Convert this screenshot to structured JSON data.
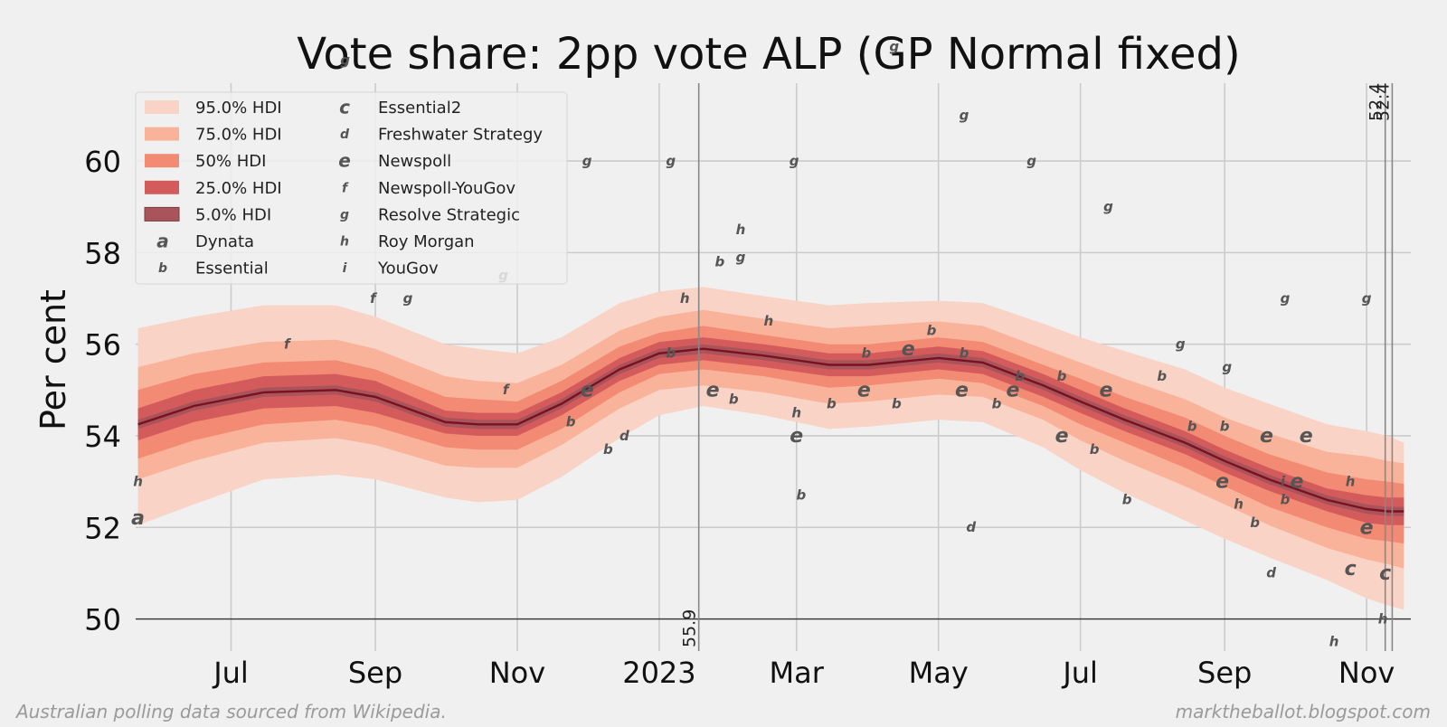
{
  "chart_data": {
    "type": "area",
    "title": "Vote share: 2pp vote ALP (GP Normal fixed)",
    "ylabel": "Per cent",
    "xlabel": "",
    "ylim": [
      49.3,
      61.7
    ],
    "xlim": [
      "2022-05-21",
      "2023-11-20"
    ],
    "yticks": [
      50,
      52,
      54,
      56,
      58,
      60
    ],
    "xticks": [
      {
        "date": "2022-07-01",
        "label": "Jul"
      },
      {
        "date": "2022-09-01",
        "label": "Sep"
      },
      {
        "date": "2022-11-01",
        "label": "Nov"
      },
      {
        "date": "2023-01-01",
        "label": "2023"
      },
      {
        "date": "2023-03-01",
        "label": "Mar"
      },
      {
        "date": "2023-05-01",
        "label": "May"
      },
      {
        "date": "2023-07-01",
        "label": "Jul"
      },
      {
        "date": "2023-09-01",
        "label": "Sep"
      },
      {
        "date": "2023-11-01",
        "label": "Nov"
      }
    ],
    "grid": true,
    "legend_position": "top-left",
    "reference_line_y": 50,
    "colors": {
      "band95": "#f9d3c5",
      "band75": "#f9b39a",
      "band50": "#f28a74",
      "band25": "#d45b5b",
      "band5": "#a8545a",
      "median": "#7a1020",
      "text": "#333333",
      "grid": "#cbcbcb"
    },
    "hdi_x": [
      "2022-05-22",
      "2022-06-15",
      "2022-07-15",
      "2022-08-15",
      "2022-09-01",
      "2022-10-01",
      "2022-10-15",
      "2022-11-01",
      "2022-11-20",
      "2022-12-15",
      "2023-01-01",
      "2023-01-20",
      "2023-02-15",
      "2023-03-15",
      "2023-04-01",
      "2023-05-01",
      "2023-05-20",
      "2023-06-15",
      "2023-07-01",
      "2023-07-20",
      "2023-08-15",
      "2023-09-01",
      "2023-09-20",
      "2023-10-15",
      "2023-11-01",
      "2023-11-10",
      "2023-11-17"
    ],
    "median": [
      54.25,
      54.65,
      54.95,
      55.0,
      54.85,
      54.3,
      54.25,
      54.25,
      54.7,
      55.45,
      55.8,
      55.9,
      55.75,
      55.55,
      55.55,
      55.7,
      55.6,
      55.1,
      54.75,
      54.35,
      53.85,
      53.45,
      53.05,
      52.6,
      52.4,
      52.35,
      52.35
    ],
    "bands": [
      {
        "label": "95.0% HDI",
        "lower": [
          52.05,
          52.5,
          53.05,
          53.15,
          53.05,
          52.65,
          52.55,
          52.6,
          53.1,
          53.95,
          54.45,
          54.65,
          54.45,
          54.15,
          54.2,
          54.35,
          54.3,
          53.75,
          53.25,
          52.75,
          52.15,
          51.75,
          51.35,
          50.85,
          50.45,
          50.3,
          50.2
        ],
        "upper": [
          56.35,
          56.6,
          56.85,
          56.85,
          56.6,
          56.0,
          55.9,
          55.8,
          56.15,
          56.9,
          57.15,
          57.25,
          57.05,
          56.85,
          56.9,
          56.95,
          56.9,
          56.45,
          56.15,
          55.85,
          55.45,
          55.05,
          54.7,
          54.25,
          54.1,
          54.0,
          53.85
        ]
      },
      {
        "label": "75.0% HDI",
        "lower": [
          53.05,
          53.45,
          53.85,
          53.95,
          53.8,
          53.35,
          53.3,
          53.3,
          53.8,
          54.6,
          55.0,
          55.1,
          54.95,
          54.7,
          54.75,
          54.9,
          54.85,
          54.35,
          53.9,
          53.45,
          52.9,
          52.5,
          52.05,
          51.55,
          51.3,
          51.2,
          51.1
        ],
        "upper": [
          55.5,
          55.8,
          56.05,
          56.1,
          55.9,
          55.3,
          55.2,
          55.15,
          55.55,
          56.3,
          56.6,
          56.75,
          56.55,
          56.35,
          56.4,
          56.5,
          56.4,
          55.9,
          55.6,
          55.25,
          54.8,
          54.4,
          54.05,
          53.65,
          53.55,
          53.45,
          53.4
        ]
      },
      {
        "label": "50% HDI",
        "lower": [
          53.5,
          53.9,
          54.25,
          54.35,
          54.2,
          53.75,
          53.7,
          53.7,
          54.15,
          54.95,
          55.35,
          55.45,
          55.3,
          55.05,
          55.1,
          55.25,
          55.15,
          54.65,
          54.25,
          53.85,
          53.3,
          52.9,
          52.45,
          52.0,
          51.75,
          51.7,
          51.65
        ],
        "upper": [
          55.0,
          55.35,
          55.6,
          55.65,
          55.45,
          54.85,
          54.8,
          54.75,
          55.2,
          55.95,
          56.25,
          56.4,
          56.2,
          56.0,
          56.0,
          56.15,
          56.05,
          55.55,
          55.25,
          54.85,
          54.4,
          54.0,
          53.6,
          53.2,
          53.05,
          53.0,
          52.95
        ]
      },
      {
        "label": "25.0% HDI",
        "lower": [
          53.9,
          54.3,
          54.6,
          54.65,
          54.5,
          54.05,
          54.0,
          54.0,
          54.45,
          55.2,
          55.55,
          55.65,
          55.5,
          55.3,
          55.3,
          55.45,
          55.35,
          54.85,
          54.5,
          54.1,
          53.6,
          53.2,
          52.8,
          52.35,
          52.1,
          52.05,
          52.05
        ],
        "upper": [
          54.6,
          55.0,
          55.3,
          55.35,
          55.2,
          54.55,
          54.5,
          54.5,
          54.95,
          55.7,
          56.05,
          56.15,
          56.0,
          55.8,
          55.8,
          55.95,
          55.85,
          55.35,
          55.0,
          54.6,
          54.1,
          53.7,
          53.3,
          52.85,
          52.7,
          52.65,
          52.65
        ]
      },
      {
        "label": "5.0% HDI",
        "lower": [
          54.15,
          54.55,
          54.85,
          54.9,
          54.75,
          54.2,
          54.15,
          54.15,
          54.6,
          55.35,
          55.7,
          55.8,
          55.65,
          55.45,
          55.45,
          55.6,
          55.5,
          55.0,
          54.65,
          54.25,
          53.75,
          53.35,
          52.95,
          52.5,
          52.3,
          52.25,
          52.25
        ],
        "upper": [
          54.35,
          54.75,
          55.05,
          55.1,
          54.95,
          54.4,
          54.35,
          54.35,
          54.8,
          55.55,
          55.9,
          56.0,
          55.85,
          55.65,
          55.65,
          55.8,
          55.7,
          55.2,
          54.85,
          54.45,
          53.95,
          53.55,
          53.15,
          52.7,
          52.5,
          52.45,
          52.45
        ]
      }
    ],
    "pollster_legend": [
      {
        "marker": "a",
        "name": "Dynata"
      },
      {
        "marker": "b",
        "name": "Essential"
      },
      {
        "marker": "c",
        "name": "Essential2"
      },
      {
        "marker": "d",
        "name": "Freshwater Strategy"
      },
      {
        "marker": "e",
        "name": "Newspoll"
      },
      {
        "marker": "f",
        "name": "Newspoll-YouGov"
      },
      {
        "marker": "g",
        "name": "Resolve Strategic"
      },
      {
        "marker": "h",
        "name": "Roy Morgan"
      },
      {
        "marker": "i",
        "name": "YouGov"
      }
    ],
    "polls": [
      {
        "m": "a",
        "d": "2022-05-22",
        "v": 52.2
      },
      {
        "m": "h",
        "d": "2022-05-22",
        "v": 53.0
      },
      {
        "m": "f",
        "d": "2022-07-25",
        "v": 56.0
      },
      {
        "m": "g",
        "d": "2022-08-19",
        "v": 62.2
      },
      {
        "m": "f",
        "d": "2022-08-31",
        "v": 57.0
      },
      {
        "m": "g",
        "d": "2022-09-15",
        "v": 57.0
      },
      {
        "m": "g",
        "d": "2022-10-26",
        "v": 57.5
      },
      {
        "m": "f",
        "d": "2022-10-27",
        "v": 55.0
      },
      {
        "m": "g",
        "d": "2022-12-01",
        "v": 60.0
      },
      {
        "m": "e",
        "d": "2022-12-01",
        "v": 55.0
      },
      {
        "m": "b",
        "d": "2022-11-24",
        "v": 54.3
      },
      {
        "m": "b",
        "d": "2022-12-10",
        "v": 53.7
      },
      {
        "m": "d",
        "d": "2022-12-17",
        "v": 54.0
      },
      {
        "m": "g",
        "d": "2023-01-06",
        "v": 60.0
      },
      {
        "m": "b",
        "d": "2023-01-06",
        "v": 55.8
      },
      {
        "m": "h",
        "d": "2023-01-12",
        "v": 57.0
      },
      {
        "m": "b",
        "d": "2023-01-27",
        "v": 57.8
      },
      {
        "m": "h",
        "d": "2023-02-05",
        "v": 58.5
      },
      {
        "m": "g",
        "d": "2023-02-05",
        "v": 57.9
      },
      {
        "m": "e",
        "d": "2023-01-24",
        "v": 55.0
      },
      {
        "m": "b",
        "d": "2023-02-02",
        "v": 54.8
      },
      {
        "m": "h",
        "d": "2023-02-17",
        "v": 56.5
      },
      {
        "m": "g",
        "d": "2023-02-28",
        "v": 60.0
      },
      {
        "m": "h",
        "d": "2023-03-01",
        "v": 54.5
      },
      {
        "m": "e",
        "d": "2023-03-01",
        "v": 54.0
      },
      {
        "m": "b",
        "d": "2023-03-03",
        "v": 52.7
      },
      {
        "m": "b",
        "d": "2023-03-16",
        "v": 54.7
      },
      {
        "m": "b",
        "d": "2023-03-31",
        "v": 55.8
      },
      {
        "m": "e",
        "d": "2023-03-30",
        "v": 55.0
      },
      {
        "m": "b",
        "d": "2023-04-13",
        "v": 54.7
      },
      {
        "m": "g",
        "d": "2023-04-12",
        "v": 62.5
      },
      {
        "m": "e",
        "d": "2023-04-18",
        "v": 55.9
      },
      {
        "m": "b",
        "d": "2023-04-28",
        "v": 56.3
      },
      {
        "m": "e",
        "d": "2023-05-11",
        "v": 55.0
      },
      {
        "m": "g",
        "d": "2023-05-12",
        "v": 61.0
      },
      {
        "m": "d",
        "d": "2023-05-15",
        "v": 52.0
      },
      {
        "m": "b",
        "d": "2023-05-12",
        "v": 55.8
      },
      {
        "m": "b",
        "d": "2023-05-26",
        "v": 54.7
      },
      {
        "m": "e",
        "d": "2023-06-02",
        "v": 55.0
      },
      {
        "m": "b",
        "d": "2023-06-05",
        "v": 55.3
      },
      {
        "m": "g",
        "d": "2023-06-10",
        "v": 60.0
      },
      {
        "m": "e",
        "d": "2023-06-23",
        "v": 54.0
      },
      {
        "m": "b",
        "d": "2023-06-23",
        "v": 55.3
      },
      {
        "m": "b",
        "d": "2023-07-07",
        "v": 53.7
      },
      {
        "m": "e",
        "d": "2023-07-12",
        "v": 55.0
      },
      {
        "m": "g",
        "d": "2023-07-13",
        "v": 59.0
      },
      {
        "m": "b",
        "d": "2023-07-21",
        "v": 52.6
      },
      {
        "m": "b",
        "d": "2023-08-05",
        "v": 55.3
      },
      {
        "m": "g",
        "d": "2023-08-13",
        "v": 56.0
      },
      {
        "m": "b",
        "d": "2023-08-18",
        "v": 54.2
      },
      {
        "m": "b",
        "d": "2023-09-01",
        "v": 54.2
      },
      {
        "m": "e",
        "d": "2023-08-31",
        "v": 53.0
      },
      {
        "m": "h",
        "d": "2023-09-07",
        "v": 52.5
      },
      {
        "m": "g",
        "d": "2023-09-02",
        "v": 55.5
      },
      {
        "m": "b",
        "d": "2023-09-14",
        "v": 52.1
      },
      {
        "m": "e",
        "d": "2023-09-19",
        "v": 54.0
      },
      {
        "m": "d",
        "d": "2023-09-21",
        "v": 51.0
      },
      {
        "m": "g",
        "d": "2023-09-27",
        "v": 57.0
      },
      {
        "m": "b",
        "d": "2023-09-27",
        "v": 52.6
      },
      {
        "m": "i",
        "d": "2023-09-26",
        "v": 53.0
      },
      {
        "m": "e",
        "d": "2023-10-02",
        "v": 53.0
      },
      {
        "m": "e",
        "d": "2023-10-06",
        "v": 54.0
      },
      {
        "m": "h",
        "d": "2023-10-18",
        "v": 49.5
      },
      {
        "m": "h",
        "d": "2023-10-25",
        "v": 53.0
      },
      {
        "m": "c",
        "d": "2023-10-25",
        "v": 51.1
      },
      {
        "m": "g",
        "d": "2023-11-01",
        "v": 57.0
      },
      {
        "m": "e",
        "d": "2023-11-01",
        "v": 52.0
      },
      {
        "m": "c",
        "d": "2023-11-09",
        "v": 51.0
      },
      {
        "m": "h",
        "d": "2023-11-08",
        "v": 50.0
      }
    ],
    "annotations": [
      {
        "text": "55.9",
        "date": "2023-01-18",
        "v": 55.9
      },
      {
        "text": "52.4",
        "date": "2023-11-09",
        "v": 52.4
      },
      {
        "text": "52.4",
        "date": "2023-11-12",
        "v": 52.4
      }
    ],
    "markers_vertical": [
      "2023-01-18",
      "2023-11-09",
      "2023-11-12"
    ]
  },
  "footer": {
    "left": "Australian polling data sourced from Wikipedia.",
    "right": "marktheballot.blogspot.com"
  }
}
